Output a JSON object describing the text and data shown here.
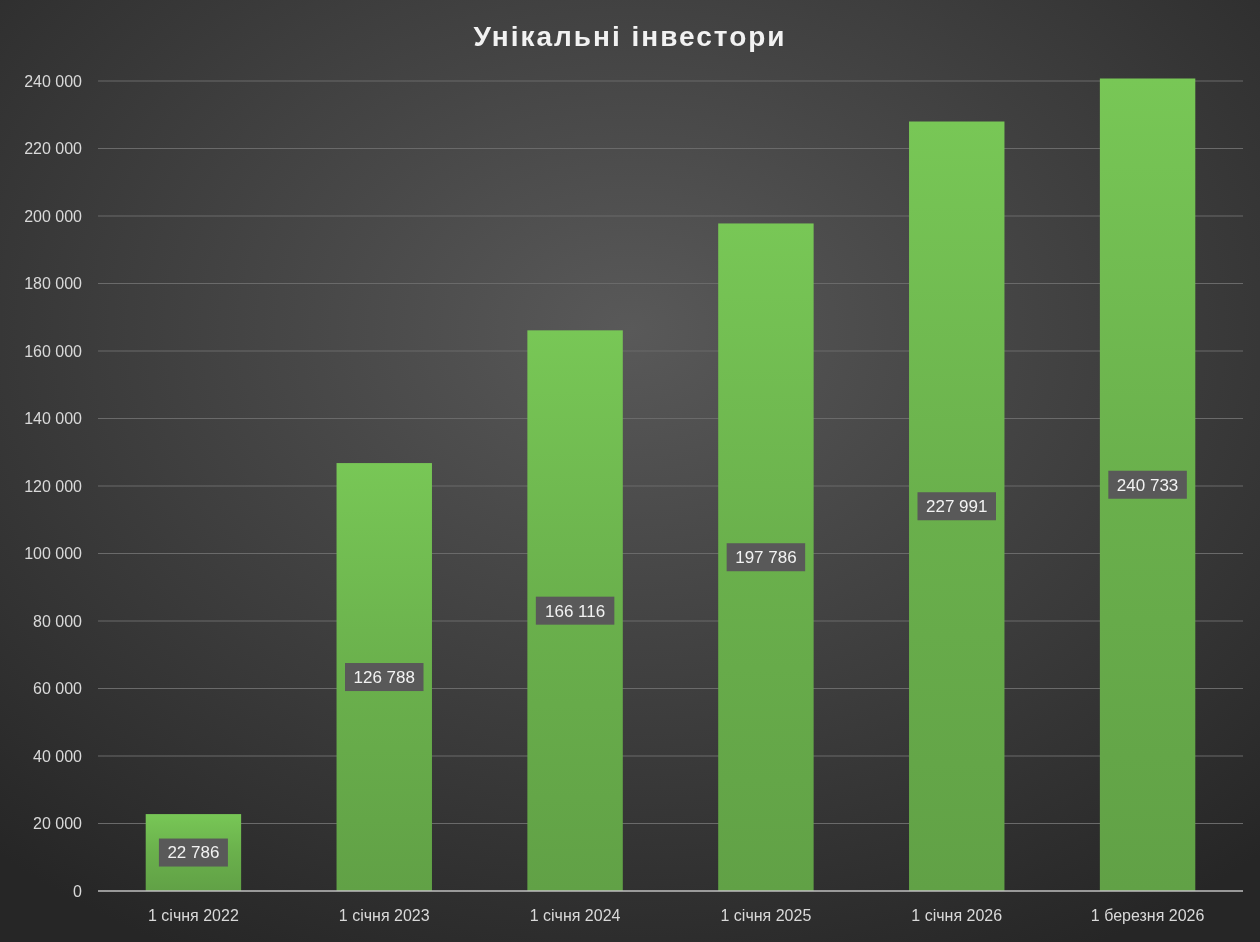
{
  "chart_data": {
    "type": "bar",
    "title": "Унікальні інвестори",
    "categories": [
      "1 січня 2022",
      "1 січня 2023",
      "1 січня 2024",
      "1 січня 2025",
      "1 січня 2026",
      "1 березня 2026"
    ],
    "values": [
      22786,
      126788,
      166116,
      197786,
      227991,
      240733
    ],
    "value_labels": [
      "22 786",
      "126 788",
      "166 116",
      "197 786",
      "227 991",
      "240 733"
    ],
    "color": "#6ab04c",
    "ylim": [
      0,
      241000
    ],
    "yticks": [
      {
        "value": 0,
        "label": "0"
      },
      {
        "value": 20000,
        "label": "20 000"
      },
      {
        "value": 40000,
        "label": "40 000"
      },
      {
        "value": 60000,
        "label": "60 000"
      },
      {
        "value": 80000,
        "label": "80 000"
      },
      {
        "value": 100000,
        "label": "100 000"
      },
      {
        "value": 120000,
        "label": "120 000"
      },
      {
        "value": 140000,
        "label": "140 000"
      },
      {
        "value": 160000,
        "label": "160 000"
      },
      {
        "value": 180000,
        "label": "180 000"
      },
      {
        "value": 200000,
        "label": "200 000"
      },
      {
        "value": 220000,
        "label": "220 000"
      },
      {
        "value": 240000,
        "label": "240 000"
      }
    ],
    "grid": true
  }
}
